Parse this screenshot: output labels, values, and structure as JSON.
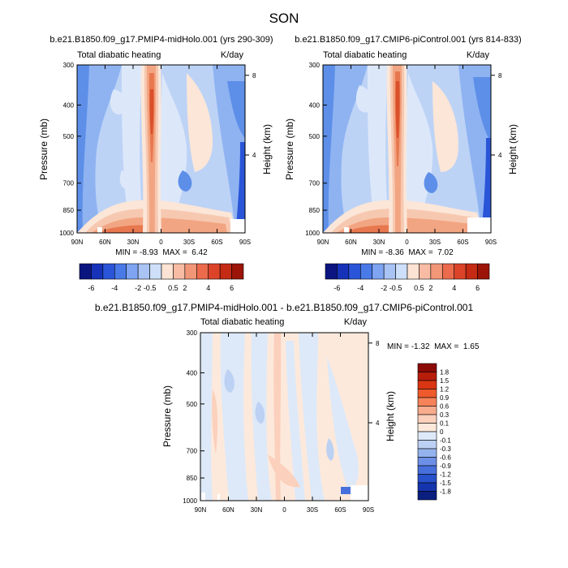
{
  "season_title": "SON",
  "chart_data": [
    {
      "type": "heatmap",
      "title": "b.e21.B1850.f09_g17.PMIP4-midHolo.001 (yrs 290-309)",
      "subtitle_left": "Total diabatic heating",
      "subtitle_right": "K/day",
      "x_ticks": [
        "90N",
        "60N",
        "30N",
        "0",
        "30S",
        "60S",
        "90S"
      ],
      "y_ticks": [
        "300",
        "400",
        "500",
        "700",
        "850",
        "1000"
      ],
      "ylabel": "Pressure (mb)",
      "right_ylabel": "Height (km)",
      "right_ticks": [
        "8",
        "4"
      ],
      "stats": "MIN = -8.93  MAX =  6.42",
      "min": -8.93,
      "max": 6.42,
      "levels": [
        -6,
        -4,
        -2,
        -0.5,
        0.5,
        2,
        4,
        6
      ]
    },
    {
      "type": "heatmap",
      "title": "b.e21.B1850.f09_g17.CMIP6-piControl.001 (yrs 814-833)",
      "subtitle_left": "Total diabatic heating",
      "subtitle_right": "K/day",
      "x_ticks": [
        "90N",
        "60N",
        "30N",
        "0",
        "30S",
        "60S",
        "90S"
      ],
      "y_ticks": [
        "300",
        "400",
        "500",
        "700",
        "850",
        "1000"
      ],
      "ylabel": "Pressure (mb)",
      "right_ylabel": "Height (km)",
      "right_ticks": [
        "8",
        "4"
      ],
      "stats": "MIN = -8.36  MAX =  7.02",
      "min": -8.36,
      "max": 7.02,
      "levels": [
        -6,
        -4,
        -2,
        -0.5,
        0.5,
        2,
        4,
        6
      ]
    },
    {
      "type": "heatmap",
      "title": "b.e21.B1850.f09_g17.PMIP4-midHolo.001 - b.e21.B1850.f09_g17.CMIP6-piControl.001",
      "subtitle_left": "Total diabatic heating",
      "subtitle_right": "K/day",
      "x_ticks": [
        "90N",
        "60N",
        "30N",
        "0",
        "30S",
        "60S",
        "90S"
      ],
      "y_ticks": [
        "300",
        "400",
        "500",
        "700",
        "850",
        "1000"
      ],
      "ylabel": "Pressure (mb)",
      "right_ylabel": "Height (km)",
      "right_ticks": [
        "8",
        "4"
      ],
      "stats": "MIN = -1.32  MAX =  1.65",
      "min": -1.32,
      "max": 1.65,
      "levels": [
        1.8,
        1.5,
        1.2,
        0.9,
        0.6,
        0.3,
        0.1,
        0,
        -0.1,
        -0.3,
        -0.6,
        -0.9,
        -1.2,
        -1.5,
        -1.8
      ]
    }
  ],
  "colorbar_top": {
    "labels": [
      "-6",
      "-4",
      "-2",
      "-0.5",
      "0.5",
      "2",
      "4",
      "6"
    ],
    "colors": [
      "#0b1580",
      "#1632b8",
      "#2a55d8",
      "#4a7ae8",
      "#7ea4f2",
      "#a9c3f5",
      "#cddff9",
      "#fde3d3",
      "#f8bca4",
      "#f29678",
      "#eb6b4c",
      "#dc4429",
      "#c42a14",
      "#9c1408"
    ]
  },
  "colorbar_diff": {
    "labels": [
      "1.8",
      "1.5",
      "1.2",
      "0.9",
      "0.6",
      "0.3",
      "0.1",
      "0",
      "-0.1",
      "-0.3",
      "-0.6",
      "-0.9",
      "-1.2",
      "-1.5",
      "-1.8"
    ],
    "colors": [
      "#8c0a06",
      "#b81d0c",
      "#da3613",
      "#ee5a2b",
      "#f6825a",
      "#f9ab8d",
      "#fbd0bc",
      "#fde9db",
      "#dde9f8",
      "#bcd1f3",
      "#94b3ee",
      "#6c90e6",
      "#4870dc",
      "#2851cc",
      "#1435ad",
      "#0a1f80"
    ]
  },
  "palette": {
    "blue_dark": "#5d8fe9",
    "blue_mid": "#8fb3f1",
    "blue_light": "#bdd3f6",
    "blue_pale": "#dce8fa",
    "peach_pale": "#fbe6d8",
    "peach": "#f7c8b0",
    "orange": "#f2a582",
    "orange_dark": "#e8784f",
    "red": "#d9502b"
  }
}
